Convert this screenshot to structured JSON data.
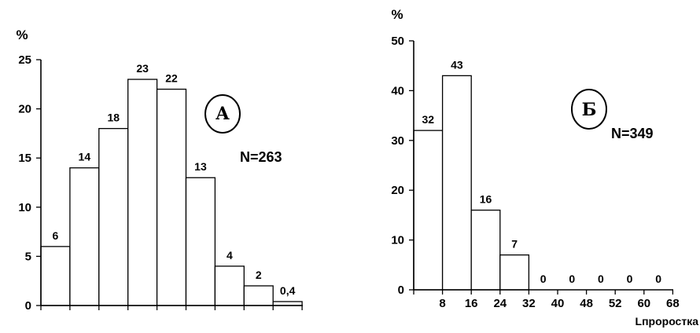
{
  "chart_data": [
    {
      "type": "bar",
      "panel": "А",
      "ylabel": "%",
      "ylim": [
        0,
        25
      ],
      "yticks": [
        "0",
        "5",
        "10",
        "15",
        "20",
        "25"
      ],
      "values": [
        6,
        14,
        18,
        23,
        22,
        13,
        4,
        2,
        0.4
      ],
      "value_labels": [
        "6",
        "14",
        "18",
        "23",
        "22",
        "13",
        "4",
        "2",
        "0,4"
      ],
      "annotation": "N=263",
      "grid": false
    },
    {
      "type": "bar",
      "panel": "Б",
      "ylabel": "%",
      "ylim": [
        0,
        50
      ],
      "yticks": [
        "0",
        "10",
        "20",
        "30",
        "40",
        "50"
      ],
      "categories": [
        "8",
        "16",
        "24",
        "32",
        "40",
        "48",
        "52",
        "60",
        "68"
      ],
      "values": [
        32,
        43,
        16,
        7,
        0,
        0,
        0,
        0,
        0
      ],
      "value_labels": [
        "32",
        "43",
        "16",
        "7",
        "0",
        "0",
        "0",
        "0",
        "0"
      ],
      "annotation": "N=349",
      "xlabel": "Lпроростка",
      "grid": false
    }
  ]
}
